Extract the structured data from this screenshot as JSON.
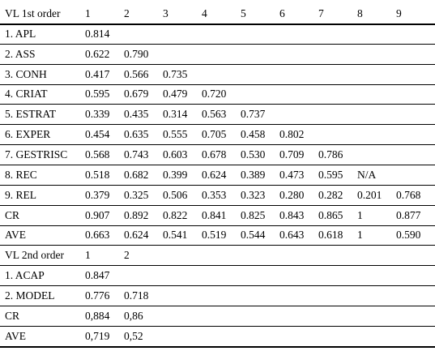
{
  "table": {
    "sections": [
      {
        "header": [
          "VL 1st order",
          "1",
          "2",
          "3",
          "4",
          "5",
          "6",
          "7",
          "8",
          "9"
        ],
        "rows": [
          [
            "1. APL",
            "0.814"
          ],
          [
            "2. ASS",
            "0.622",
            "0.790"
          ],
          [
            "3. CONH",
            "0.417",
            "0.566",
            "0.735"
          ],
          [
            "4. CRIAT",
            "0.595",
            "0.679",
            "0.479",
            "0.720"
          ],
          [
            "5. ESTRAT",
            "0.339",
            "0.435",
            "0.314",
            "0.563",
            "0.737"
          ],
          [
            "6. EXPER",
            "0.454",
            "0.635",
            "0.555",
            "0.705",
            "0.458",
            "0.802"
          ],
          [
            "7. GESTRISC",
            "0.568",
            "0.743",
            "0.603",
            "0.678",
            "0.530",
            "0.709",
            "0.786"
          ],
          [
            "8. REC",
            "0.518",
            "0.682",
            "0.399",
            "0.624",
            "0.389",
            "0.473",
            "0.595",
            "N/A"
          ],
          [
            "9. REL",
            "0.379",
            "0.325",
            "0.506",
            "0.353",
            "0.323",
            "0.280",
            "0.282",
            "0.201",
            "0.768"
          ],
          [
            "CR",
            "0.907",
            "0.892",
            "0.822",
            "0.841",
            "0.825",
            "0.843",
            "0.865",
            "1",
            "0.877"
          ],
          [
            "AVE",
            "0.663",
            "0.624",
            "0.541",
            "0.519",
            "0.544",
            "0.643",
            "0.618",
            "1",
            "0.590"
          ]
        ]
      },
      {
        "header": [
          "VL 2nd order",
          "1",
          "2"
        ],
        "rows": [
          [
            "1. ACAP",
            "0.847"
          ],
          [
            "2. MODEL",
            "0.776",
            "0.718"
          ],
          [
            "CR",
            "0,884",
            "0,86"
          ],
          [
            "AVE",
            "0,719",
            "0,52"
          ]
        ]
      }
    ]
  }
}
